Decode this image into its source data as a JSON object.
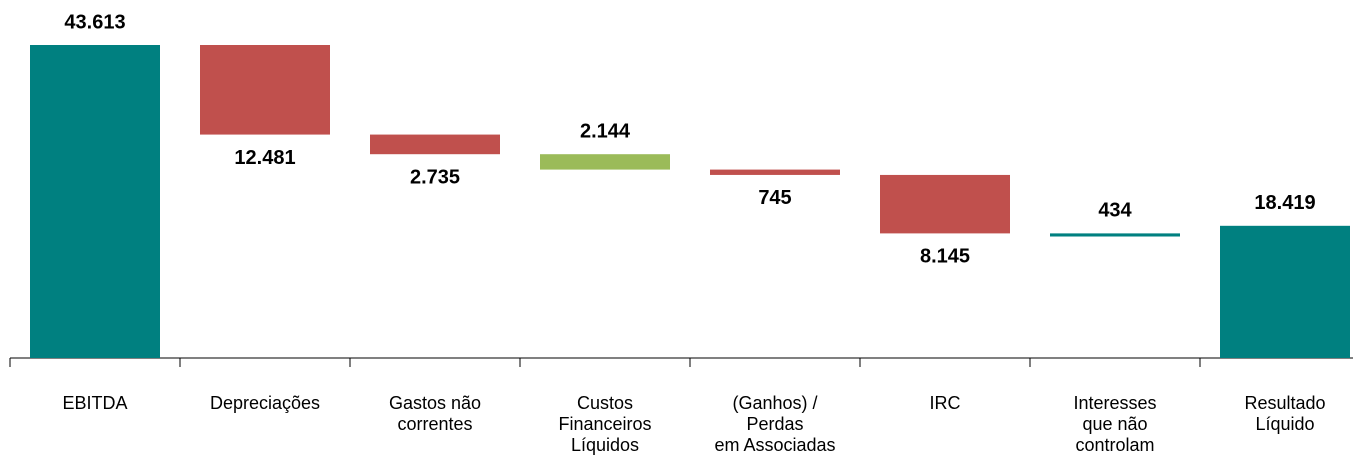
{
  "chart_data": {
    "type": "waterfall",
    "categories": [
      "EBITDA",
      "Depreciações",
      "Gastos não\ncorrentes",
      "Custos\nFinanceiros\nLíquidos",
      "(Ganhos) /\nPerdas\nem Associadas",
      "IRC",
      "Interesses\nque não\ncontrolam",
      "Resultado\nLíquido"
    ],
    "values": [
      43613,
      12481,
      2735,
      2144,
      745,
      8145,
      434,
      18419
    ],
    "value_labels": [
      "43.613",
      "12.481",
      "2.735",
      "2.144",
      "745",
      "8.145",
      "434",
      "18.419"
    ],
    "colors": [
      "#008080",
      "#c0504d",
      "#c0504d",
      "#9bbb59",
      "#c0504d",
      "#c0504d",
      "#008080",
      "#008080"
    ],
    "ylim": [
      0,
      43613
    ]
  }
}
